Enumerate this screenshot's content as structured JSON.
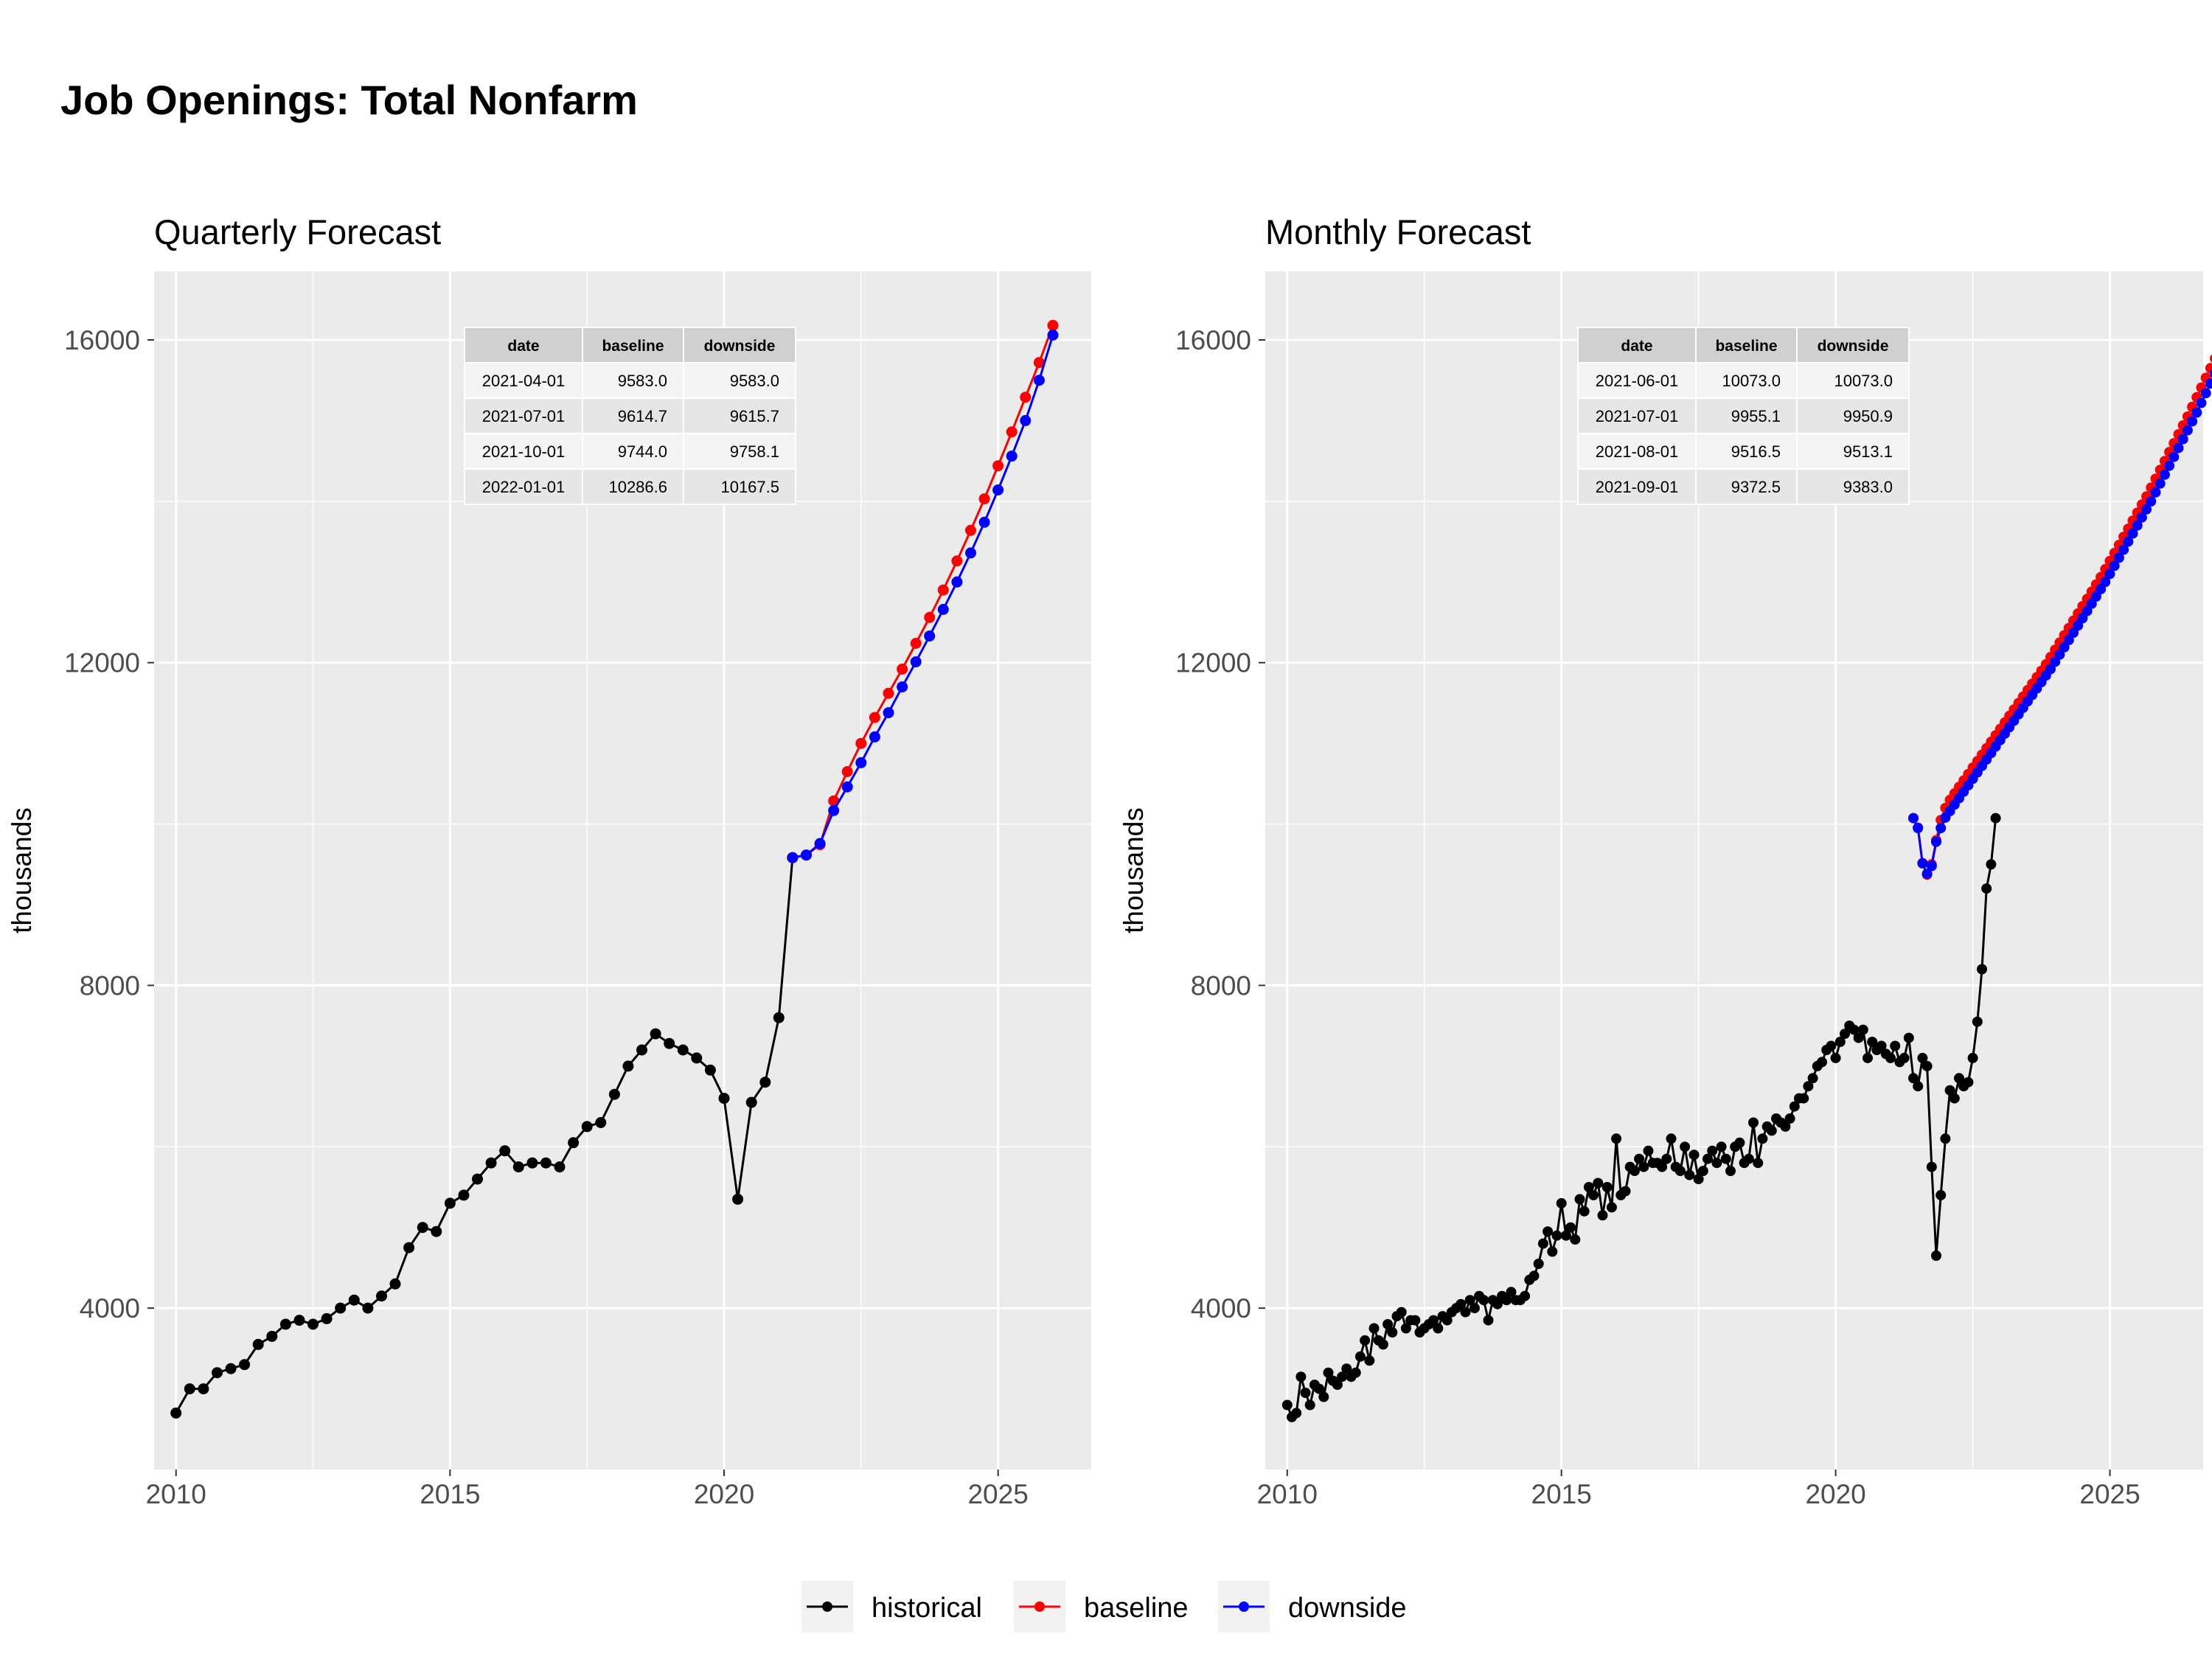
{
  "title": "Job Openings: Total Nonfarm",
  "colors": {
    "historical": "#000000",
    "baseline": "#ff0000",
    "downside": "#0000ff",
    "panel_bg": "#ebebeb",
    "grid": "#ffffff",
    "table_head": "#d0d0d0"
  },
  "legend": {
    "placement": "bottom",
    "items": [
      "historical",
      "baseline",
      "downside"
    ]
  },
  "chart_data": [
    {
      "type": "line",
      "subtitle": "Quarterly Forecast",
      "xlabel": "",
      "ylabel": "thousands",
      "xlim": [
        2009.6,
        2026.7
      ],
      "ylim": [
        2000,
        16850
      ],
      "xticks": [
        2010,
        2015,
        2020,
        2025
      ],
      "yticks": [
        4000,
        8000,
        12000,
        16000
      ],
      "grid": true,
      "table": {
        "headers": [
          "date",
          "baseline",
          "downside"
        ],
        "rows": [
          [
            "2021-04-01",
            "9583.0",
            "9583.0"
          ],
          [
            "2021-07-01",
            "9614.7",
            "9615.7"
          ],
          [
            "2021-10-01",
            "9744.0",
            "9758.1"
          ],
          [
            "2022-01-01",
            "10286.6",
            "10167.5"
          ]
        ]
      },
      "series": [
        {
          "name": "historical",
          "x_start": 2010.0,
          "step": 0.25,
          "values": [
            2700,
            3000,
            3000,
            3200,
            3250,
            3300,
            3550,
            3650,
            3800,
            3850,
            3800,
            3870,
            4000,
            4100,
            4000,
            4150,
            4300,
            4750,
            5000,
            4950,
            5300,
            5400,
            5600,
            5800,
            5950,
            5750,
            5800,
            5800,
            5750,
            6050,
            6250,
            6300,
            6650,
            7000,
            7200,
            7400,
            7280,
            7200,
            7100,
            6950,
            6600,
            5350,
            6550,
            6800,
            7600,
            9583
          ]
        },
        {
          "name": "baseline",
          "x_start": 2021.25,
          "step": 0.25,
          "values": [
            9583,
            9614.7,
            9744,
            10286.6,
            10650,
            11000,
            11320,
            11620,
            11920,
            12240,
            12560,
            12900,
            13260,
            13640,
            14030,
            14440,
            14860,
            15290,
            15720,
            16180
          ]
        },
        {
          "name": "downside",
          "x_start": 2021.25,
          "step": 0.25,
          "values": [
            9583,
            9615.7,
            9758.1,
            10167.5,
            10460,
            10760,
            11080,
            11380,
            11700,
            12010,
            12330,
            12660,
            13000,
            13360,
            13740,
            14140,
            14560,
            15000,
            15500,
            16060
          ]
        }
      ]
    },
    {
      "type": "line",
      "subtitle": "Monthly Forecast",
      "xlabel": "",
      "ylabel": "thousands",
      "xlim": [
        2009.6,
        2026.7
      ],
      "ylim": [
        2000,
        16850
      ],
      "xticks": [
        2010,
        2015,
        2020,
        2025
      ],
      "yticks": [
        4000,
        8000,
        12000,
        16000
      ],
      "grid": true,
      "table": {
        "headers": [
          "date",
          "baseline",
          "downside"
        ],
        "rows": [
          [
            "2021-06-01",
            "10073.0",
            "10073.0"
          ],
          [
            "2021-07-01",
            "9955.1",
            "9950.9"
          ],
          [
            "2021-08-01",
            "9516.5",
            "9513.1"
          ],
          [
            "2021-09-01",
            "9372.5",
            "9383.0"
          ]
        ]
      },
      "series": [
        {
          "name": "historical",
          "x_start": 2010.0,
          "step": 0.0833333,
          "values": [
            2800,
            2650,
            2700,
            3150,
            2950,
            2800,
            3050,
            3000,
            2900,
            3200,
            3100,
            3050,
            3150,
            3250,
            3150,
            3200,
            3400,
            3600,
            3350,
            3750,
            3600,
            3550,
            3800,
            3700,
            3900,
            3950,
            3750,
            3850,
            3850,
            3700,
            3750,
            3800,
            3850,
            3750,
            3900,
            3850,
            3950,
            4000,
            4050,
            3950,
            4100,
            4000,
            4150,
            4100,
            3850,
            4100,
            4050,
            4150,
            4100,
            4200,
            4100,
            4100,
            4150,
            4350,
            4400,
            4550,
            4800,
            4950,
            4700,
            4900,
            5300,
            4900,
            5000,
            4850,
            5350,
            5200,
            5500,
            5400,
            5550,
            5150,
            5500,
            5250,
            6100,
            5400,
            5450,
            5750,
            5700,
            5850,
            5750,
            5950,
            5800,
            5800,
            5750,
            5850,
            6100,
            5750,
            5700,
            6000,
            5650,
            5900,
            5600,
            5700,
            5850,
            5950,
            5800,
            6000,
            5850,
            5700,
            6000,
            6050,
            5800,
            5850,
            6300,
            5800,
            6100,
            6250,
            6200,
            6350,
            6300,
            6250,
            6350,
            6500,
            6600,
            6600,
            6750,
            6850,
            7000,
            7050,
            7200,
            7250,
            7100,
            7300,
            7400,
            7500,
            7450,
            7350,
            7450,
            7100,
            7300,
            7200,
            7250,
            7150,
            7100,
            7250,
            7050,
            7100,
            7350,
            6850,
            6750,
            7100,
            7000,
            5750,
            4650,
            5400,
            6100,
            6700,
            6600,
            6850,
            6750,
            6800,
            7100,
            7550,
            8200,
            9200,
            9500,
            10073
          ]
        },
        {
          "name": "baseline",
          "x_start": 2021.4167,
          "step": 0.0833333,
          "values": [
            10073,
            9955.1,
            9516.5,
            9372.5,
            9500,
            9800,
            10050,
            10200,
            10300,
            10380,
            10460,
            10540,
            10620,
            10700,
            10780,
            10860,
            10940,
            11020,
            11100,
            11180,
            11260,
            11340,
            11420,
            11500,
            11580,
            11660,
            11740,
            11820,
            11900,
            11980,
            12070,
            12160,
            12250,
            12340,
            12430,
            12520,
            12610,
            12700,
            12790,
            12880,
            12970,
            13060,
            13160,
            13260,
            13360,
            13460,
            13560,
            13660,
            13760,
            13860,
            13960,
            14060,
            14170,
            14280,
            14390,
            14500,
            14610,
            14720,
            14830,
            14940,
            15050,
            15170,
            15290,
            15410,
            15530,
            15650,
            15770,
            15890,
            16010,
            16130,
            16250
          ]
        },
        {
          "name": "downside",
          "x_start": 2021.4167,
          "step": 0.0833333,
          "values": [
            10073,
            9950.9,
            9513.1,
            9383,
            9480,
            9780,
            9950,
            10080,
            10160,
            10240,
            10320,
            10400,
            10480,
            10560,
            10640,
            10720,
            10800,
            10880,
            10960,
            11040,
            11120,
            11200,
            11280,
            11360,
            11440,
            11520,
            11600,
            11680,
            11760,
            11840,
            11920,
            12010,
            12100,
            12190,
            12280,
            12370,
            12460,
            12550,
            12640,
            12730,
            12820,
            12910,
            13000,
            13100,
            13200,
            13300,
            13400,
            13500,
            13600,
            13700,
            13800,
            13900,
            14000,
            14110,
            14220,
            14330,
            14440,
            14550,
            14660,
            14770,
            14880,
            14990,
            15100,
            15220,
            15340,
            15460,
            15580,
            15700,
            15820,
            15940,
            16060
          ]
        }
      ]
    }
  ]
}
